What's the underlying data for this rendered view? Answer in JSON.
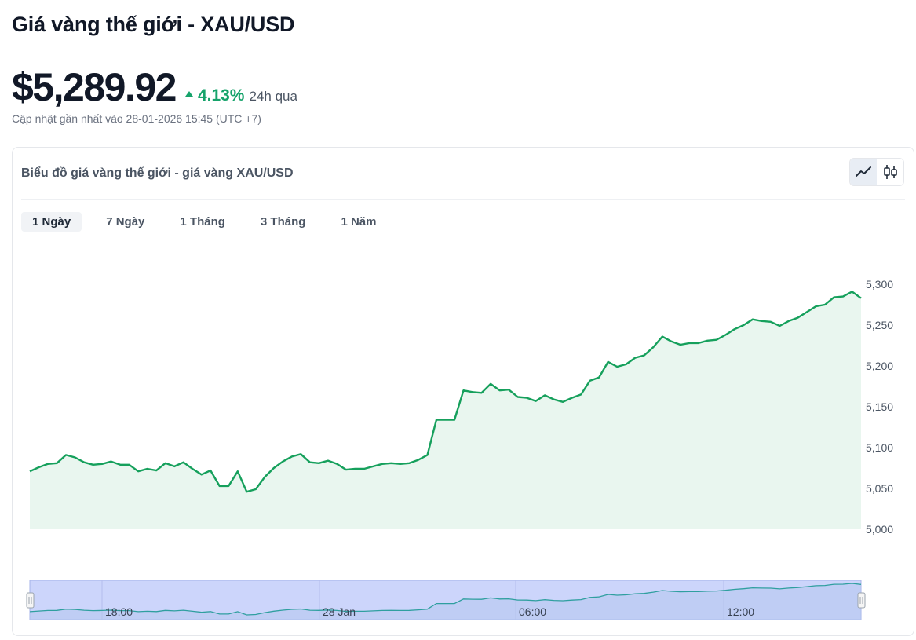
{
  "header": {
    "title": "Giá vàng thế giới - XAU/USD",
    "price": "$5,289.92",
    "change_pct": "4.13%",
    "change_period": "24h qua",
    "updated": "Cập nhật gần nhất vào 28-01-2026 15:45 (UTC +7)"
  },
  "card": {
    "title": "Biểu đồ giá vàng thế giới - giá vàng XAU/USD",
    "view_icons": [
      "line-chart-icon",
      "candlestick-icon"
    ],
    "tabs": [
      {
        "label": "1 Ngày",
        "active": true
      },
      {
        "label": "7 Ngày",
        "active": false
      },
      {
        "label": "1 Tháng",
        "active": false
      },
      {
        "label": "3 Tháng",
        "active": false
      },
      {
        "label": "1 Năm",
        "active": false
      }
    ]
  },
  "colors": {
    "line": "#16a05c",
    "area": "#e9f6ef",
    "navigator_fill": "#ccd5fb",
    "navigator_border": "#a5b3e8",
    "positive": "#16a36b"
  },
  "chart_data": {
    "type": "area",
    "y_ticks": [
      "5,000",
      "5,050",
      "5,100",
      "5,150",
      "5,200",
      "5,250",
      "5,300"
    ],
    "ylim": [
      5000,
      5300
    ],
    "grid": false,
    "values": [
      5071,
      5076,
      5080,
      5081,
      5091,
      5088,
      5082,
      5079,
      5080,
      5083,
      5079,
      5079,
      5071,
      5074,
      5072,
      5081,
      5077,
      5082,
      5074,
      5067,
      5072,
      5053,
      5053,
      5071,
      5046,
      5049,
      5064,
      5075,
      5083,
      5089,
      5092,
      5082,
      5081,
      5084,
      5080,
      5073,
      5074,
      5074,
      5077,
      5080,
      5081,
      5080,
      5081,
      5085,
      5091,
      5134,
      5134,
      5134,
      5170,
      5168,
      5167,
      5178,
      5170,
      5171,
      5162,
      5161,
      5157,
      5164,
      5159,
      5156,
      5161,
      5165,
      5182,
      5186,
      5205,
      5199,
      5202,
      5210,
      5213,
      5223,
      5236,
      5230,
      5226,
      5228,
      5228,
      5231,
      5232,
      5238,
      5245,
      5250,
      5257,
      5255,
      5254,
      5249,
      5255,
      5259,
      5266,
      5273,
      5275,
      5284,
      5285,
      5291,
      5283
    ],
    "navigator_labels": [
      "18:00",
      "28 Jan",
      "06:00",
      "12:00"
    ]
  }
}
